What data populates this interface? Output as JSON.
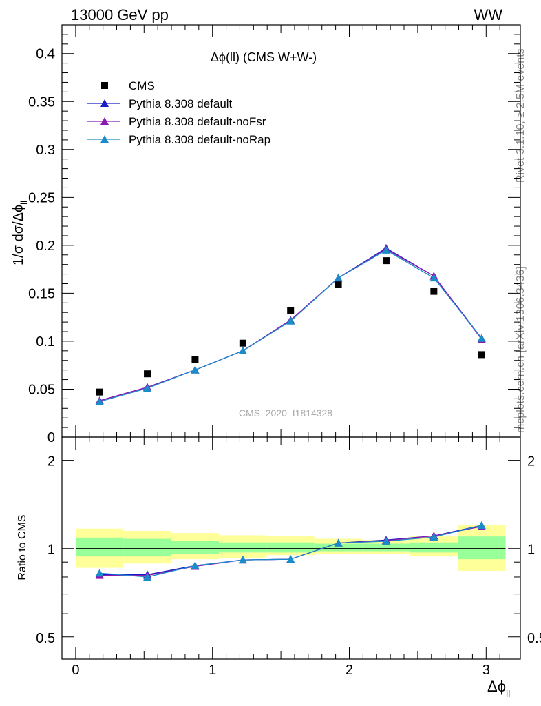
{
  "header": {
    "left": "13000 GeV pp",
    "right": "WW"
  },
  "side_labels": {
    "rivet": "Rivet 3.1.10, ≥ 2.5M events",
    "mcplots": "mcplots.cern.ch [arXiv:1306.3436]"
  },
  "chart_data": [
    {
      "type": "scatter",
      "title": "Δϕ(ll) (CMS W+W-)",
      "ylabel": "1/σ dσ/Δϕ",
      "ylabel_sub": "ll",
      "watermark": "CMS_2020_I1814328",
      "xlim": [
        -0.1,
        3.25
      ],
      "ylim": [
        0,
        0.43
      ],
      "yticks": [
        0,
        0.05,
        0.1,
        0.15,
        0.2,
        0.25,
        0.3,
        0.35,
        0.4
      ],
      "ytick_labels": [
        "0",
        "0.05",
        "0.1",
        "0.15",
        "0.2",
        "0.25",
        "0.3",
        "0.35",
        "0.4"
      ],
      "x": [
        0.175,
        0.524,
        0.873,
        1.222,
        1.571,
        1.92,
        2.269,
        2.618,
        2.967
      ],
      "legend_placement": "top-left",
      "series": [
        {
          "name": "CMS",
          "color": "#000000",
          "marker": "square",
          "values": [
            0.047,
            0.066,
            0.081,
            0.098,
            0.132,
            0.159,
            0.184,
            0.152,
            0.086
          ]
        },
        {
          "name": "Pythia 8.308 default",
          "color": "#1a1ac8",
          "marker": "triangle",
          "values": [
            0.038,
            0.052,
            0.07,
            0.09,
            0.122,
            0.166,
            0.197,
            0.168,
            0.103
          ]
        },
        {
          "name": "Pythia 8.308 default-noFsr",
          "color": "#8a1ab4",
          "marker": "triangle",
          "values": [
            0.038,
            0.052,
            0.07,
            0.09,
            0.122,
            0.166,
            0.196,
            0.168,
            0.102
          ]
        },
        {
          "name": "Pythia 8.308 default-noRap",
          "color": "#1a8cc8",
          "marker": "triangle",
          "values": [
            0.037,
            0.051,
            0.07,
            0.09,
            0.121,
            0.166,
            0.195,
            0.166,
            0.103
          ]
        }
      ]
    },
    {
      "type": "line",
      "ylabel": "Ratio to CMS",
      "xlabel": "Δϕ",
      "xlabel_sub": "ll",
      "scale": "log",
      "ylim": [
        0.42,
        2.4
      ],
      "yticks": [
        0.5,
        1,
        2
      ],
      "ytick_labels": [
        "0.5",
        "1",
        "2"
      ],
      "xticks": [
        0,
        1,
        2,
        3
      ],
      "xtick_labels": [
        "0",
        "1",
        "2",
        "3"
      ],
      "bin_edges": [
        0,
        0.349,
        0.698,
        1.047,
        1.396,
        1.745,
        2.094,
        2.443,
        2.793,
        3.142
      ],
      "band_outer": [
        [
          0.86,
          1.17
        ],
        [
          0.89,
          1.15
        ],
        [
          0.92,
          1.13
        ],
        [
          0.93,
          1.11
        ],
        [
          0.95,
          1.1
        ],
        [
          0.96,
          1.08
        ],
        [
          0.96,
          1.07
        ],
        [
          0.94,
          1.1
        ],
        [
          0.84,
          1.2
        ]
      ],
      "band_inner": [
        [
          0.94,
          1.09
        ],
        [
          0.94,
          1.08
        ],
        [
          0.96,
          1.06
        ],
        [
          0.97,
          1.05
        ],
        [
          0.97,
          1.05
        ],
        [
          0.98,
          1.04
        ],
        [
          0.98,
          1.04
        ],
        [
          0.97,
          1.05
        ],
        [
          0.92,
          1.1
        ]
      ],
      "band_colors": {
        "outer": "#ffff99",
        "inner": "#99ff99"
      },
      "x": [
        0.175,
        0.524,
        0.873,
        1.222,
        1.571,
        1.92,
        2.269,
        2.618,
        2.967
      ],
      "series": [
        {
          "name": "Pythia 8.308 default",
          "color": "#1a1ac8",
          "values": [
            0.815,
            0.815,
            0.875,
            0.915,
            0.92,
            1.045,
            1.07,
            1.105,
            1.2
          ]
        },
        {
          "name": "Pythia 8.308 default-noFsr",
          "color": "#8a1ab4",
          "values": [
            0.81,
            0.81,
            0.87,
            0.915,
            0.92,
            1.045,
            1.065,
            1.105,
            1.19
          ]
        },
        {
          "name": "Pythia 8.308 default-noRap",
          "color": "#1a8cc8",
          "values": [
            0.825,
            0.8,
            0.875,
            0.915,
            0.92,
            1.045,
            1.06,
            1.095,
            1.2
          ]
        }
      ]
    }
  ]
}
